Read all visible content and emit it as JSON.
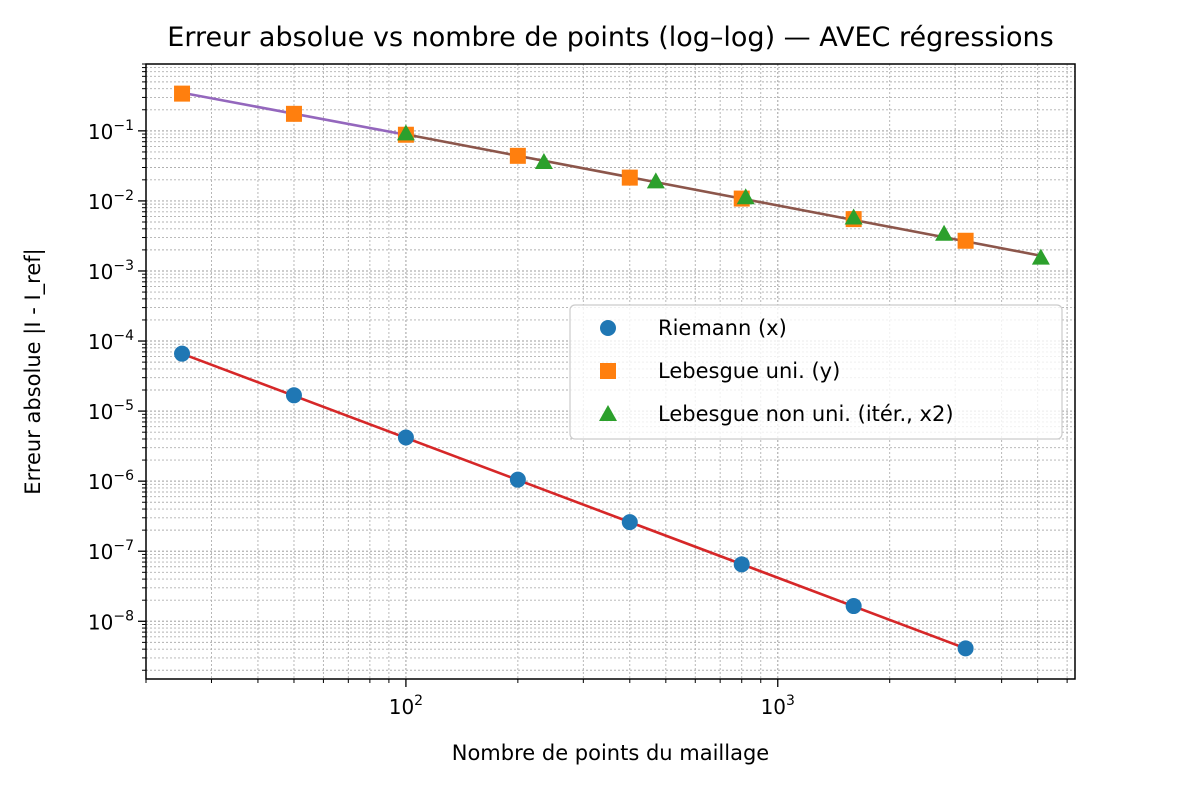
{
  "chart_data": {
    "type": "scatter",
    "title": "Erreur absolue vs nombre de points (log–log) — AVEC régressions",
    "xlabel": "Nombre de points du maillage",
    "ylabel": "Erreur absolue |I - I_ref|",
    "xscale": "log",
    "yscale": "log",
    "xlim": [
      20,
      6300
    ],
    "ylim": [
      1.5e-09,
      0.9
    ],
    "grid": true,
    "legend_position": "center-right",
    "x_ticks": [
      {
        "value": 100,
        "base": "10",
        "exp": "2"
      },
      {
        "value": 1000,
        "base": "10",
        "exp": "3"
      }
    ],
    "y_ticks": [
      {
        "value": 1e-08,
        "base": "10",
        "exp": "−8"
      },
      {
        "value": 1e-07,
        "base": "10",
        "exp": "−7"
      },
      {
        "value": 1e-06,
        "base": "10",
        "exp": "−6"
      },
      {
        "value": 1e-05,
        "base": "10",
        "exp": "−5"
      },
      {
        "value": 0.0001,
        "base": "10",
        "exp": "−4"
      },
      {
        "value": 0.001,
        "base": "10",
        "exp": "−3"
      },
      {
        "value": 0.01,
        "base": "10",
        "exp": "−2"
      },
      {
        "value": 0.1,
        "base": "10",
        "exp": "−1"
      }
    ],
    "series": [
      {
        "name": "Riemann (x)",
        "marker": "circle",
        "color": "#1f77b4",
        "x": [
          25,
          50,
          100,
          200,
          400,
          800,
          1600,
          3200
        ],
        "y": [
          6.6e-05,
          1.68e-05,
          4.2e-06,
          1.05e-06,
          2.6e-07,
          6.5e-08,
          1.65e-08,
          4.1e-09
        ]
      },
      {
        "name": "Lebesgue uni. (y)",
        "marker": "square",
        "color": "#ff7f0e",
        "x": [
          25,
          50,
          100,
          200,
          400,
          800,
          1600,
          3200
        ],
        "y": [
          0.34,
          0.175,
          0.088,
          0.044,
          0.0215,
          0.0108,
          0.0055,
          0.0027
        ]
      },
      {
        "name": "Lebesgue non uni. (itér., x2)",
        "marker": "triangle",
        "color": "#2ca02c",
        "x": [
          100,
          235,
          470,
          820,
          1600,
          2800,
          5100
        ],
        "y": [
          0.092,
          0.036,
          0.019,
          0.0113,
          0.0058,
          0.0034,
          0.00155
        ]
      }
    ],
    "regressions": [
      {
        "color": "#d62728",
        "x": [
          25,
          3200
        ],
        "y": [
          6.6e-05,
          4.1e-09
        ]
      },
      {
        "color": "#9467bd",
        "x": [
          25,
          100
        ],
        "y": [
          0.35,
          0.088
        ]
      },
      {
        "color": "#8c564b",
        "x": [
          100,
          5100
        ],
        "y": [
          0.089,
          0.00165
        ]
      }
    ]
  }
}
